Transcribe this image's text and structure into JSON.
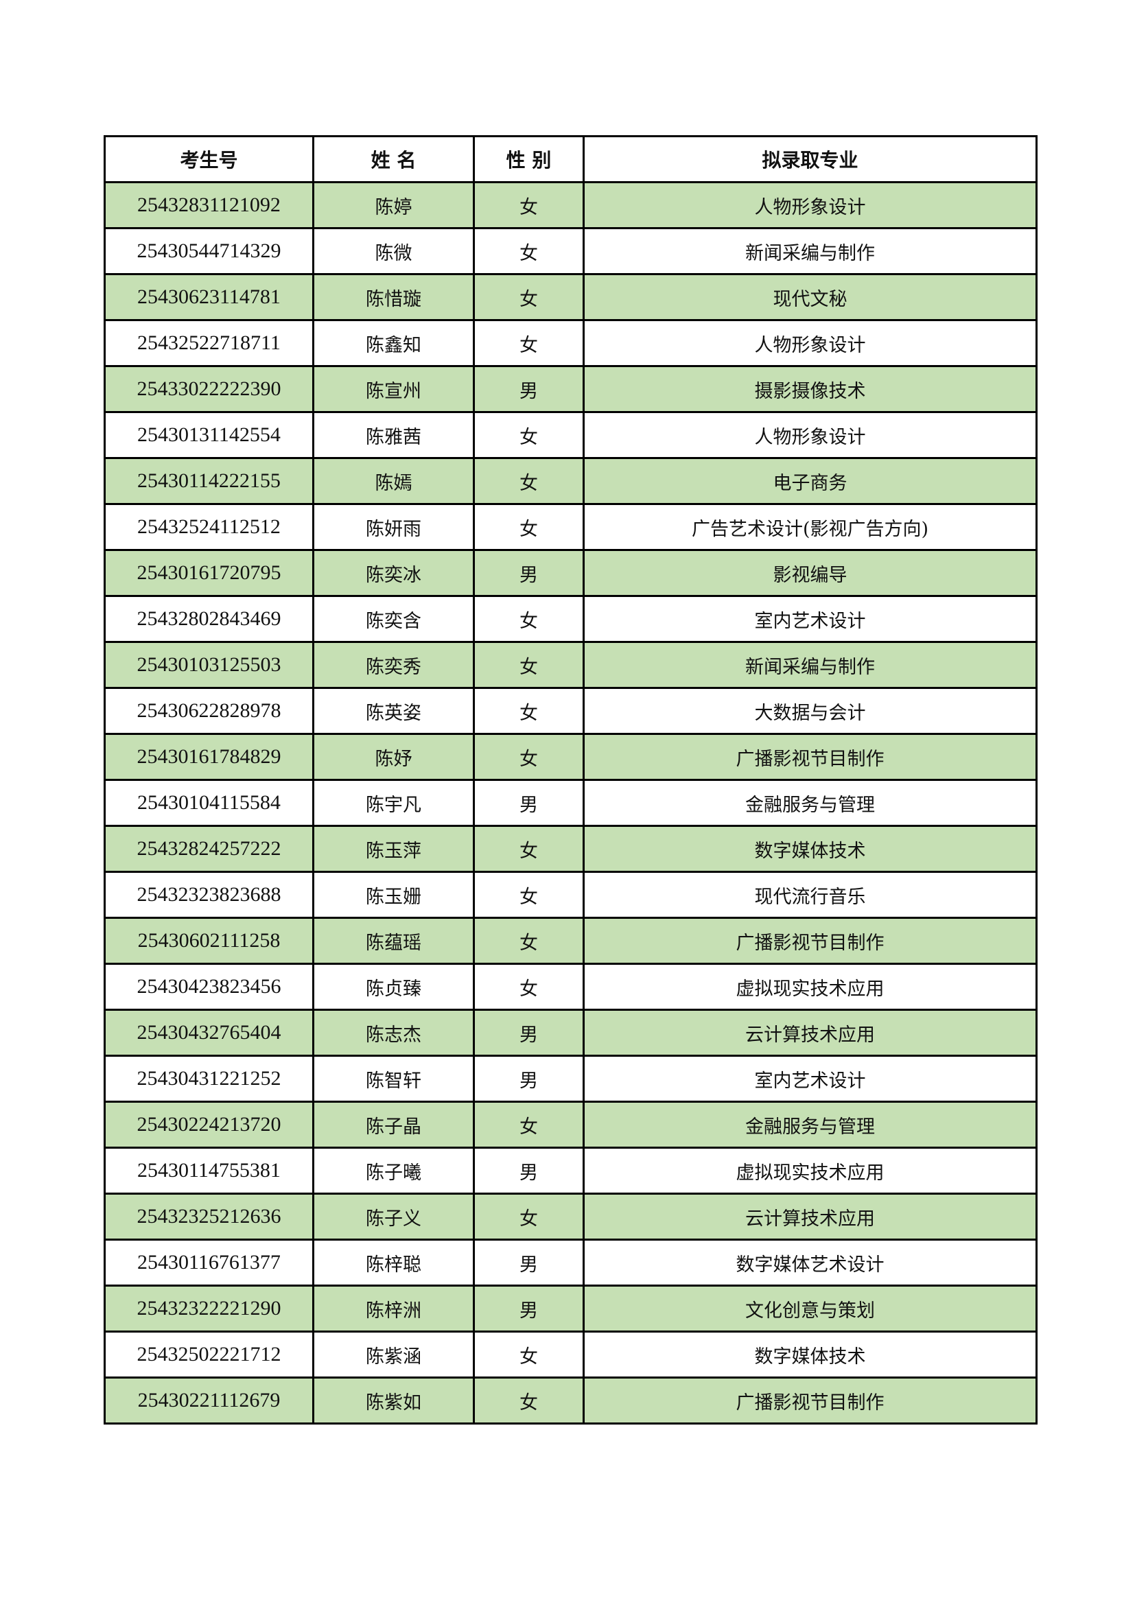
{
  "headers": [
    "考生号",
    "姓 名",
    "性 别",
    "拟录取专业"
  ],
  "row_fill_color": "#C6E0B4",
  "rows": [
    [
      "25432831121092",
      "陈婷",
      "女",
      "人物形象设计"
    ],
    [
      "25430544714329",
      "陈微",
      "女",
      "新闻采编与制作"
    ],
    [
      "25430623114781",
      "陈惜璇",
      "女",
      "现代文秘"
    ],
    [
      "25432522718711",
      "陈鑫知",
      "女",
      "人物形象设计"
    ],
    [
      "25433022222390",
      "陈宣州",
      "男",
      "摄影摄像技术"
    ],
    [
      "25430131142554",
      "陈雅茜",
      "女",
      "人物形象设计"
    ],
    [
      "25430114222155",
      "陈嫣",
      "女",
      "电子商务"
    ],
    [
      "25432524112512",
      "陈妍雨",
      "女",
      "广告艺术设计(影视广告方向)"
    ],
    [
      "25430161720795",
      "陈奕冰",
      "男",
      "影视编导"
    ],
    [
      "25432802843469",
      "陈奕含",
      "女",
      "室内艺术设计"
    ],
    [
      "25430103125503",
      "陈奕秀",
      "女",
      "新闻采编与制作"
    ],
    [
      "25430622828978",
      "陈英姿",
      "女",
      "大数据与会计"
    ],
    [
      "25430161784829",
      "陈妤",
      "女",
      "广播影视节目制作"
    ],
    [
      "25430104115584",
      "陈宇凡",
      "男",
      "金融服务与管理"
    ],
    [
      "25432824257222",
      "陈玉萍",
      "女",
      "数字媒体技术"
    ],
    [
      "25432323823688",
      "陈玉姗",
      "女",
      "现代流行音乐"
    ],
    [
      "25430602111258",
      "陈蕴瑶",
      "女",
      "广播影视节目制作"
    ],
    [
      "25430423823456",
      "陈贞臻",
      "女",
      "虚拟现实技术应用"
    ],
    [
      "25430432765404",
      "陈志杰",
      "男",
      "云计算技术应用"
    ],
    [
      "25430431221252",
      "陈智轩",
      "男",
      "室内艺术设计"
    ],
    [
      "25430224213720",
      "陈子晶",
      "女",
      "金融服务与管理"
    ],
    [
      "25430114755381",
      "陈子曦",
      "男",
      "虚拟现实技术应用"
    ],
    [
      "25432325212636",
      "陈子义",
      "女",
      "云计算技术应用"
    ],
    [
      "25430116761377",
      "陈梓聪",
      "男",
      "数字媒体艺术设计"
    ],
    [
      "25432322221290",
      "陈梓洲",
      "男",
      "文化创意与策划"
    ],
    [
      "25432502221712",
      "陈紫涵",
      "女",
      "数字媒体技术"
    ],
    [
      "25430221112679",
      "陈紫如",
      "女",
      "广播影视节目制作"
    ]
  ]
}
